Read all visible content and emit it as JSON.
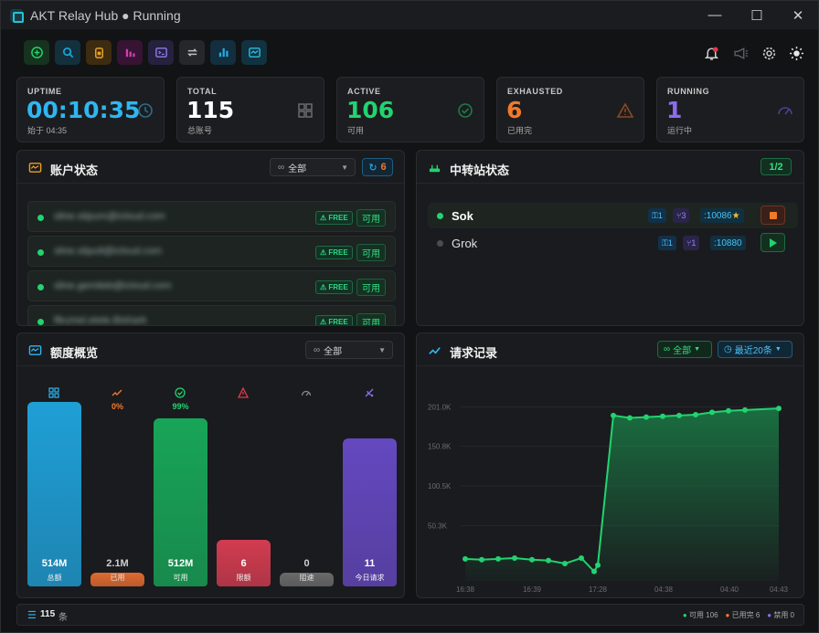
{
  "window": {
    "title": "AKT Relay Hub ● Running",
    "minimize": "—",
    "maximize": "☐",
    "close": "✕"
  },
  "toolbar": [
    {
      "name": "add",
      "icon": "plus-circle-icon",
      "color": "#23d36a"
    },
    {
      "name": "search",
      "icon": "search-icon",
      "color": "#1ea7d8"
    },
    {
      "name": "wallet",
      "icon": "jar-icon",
      "color": "#e6a128"
    },
    {
      "name": "stats",
      "icon": "bar-chart-icon",
      "color": "#d23fb5"
    },
    {
      "name": "terminal",
      "icon": "terminal-icon",
      "color": "#8f7be8"
    },
    {
      "name": "swap",
      "icon": "swap-icon",
      "color": "#bfbfbf"
    },
    {
      "name": "analytics",
      "icon": "bar-chart-icon",
      "color": "#27a9e0"
    },
    {
      "name": "monitor",
      "icon": "dashboard-icon",
      "color": "#2ac0e0"
    }
  ],
  "stats": {
    "uptime": {
      "label": "UPTIME",
      "value": "00:10:35",
      "sub": "始于 04:35",
      "color": "#2fb6f0"
    },
    "total": {
      "label": "TOTAL",
      "value": "115",
      "sub": "总账号",
      "color": "#ffffff"
    },
    "active": {
      "label": "ACTIVE",
      "value": "106",
      "sub": "可用",
      "color": "#22d36f"
    },
    "exhausted": {
      "label": "EXHAUSTED",
      "value": "6",
      "sub": "已用完",
      "color": "#f07a2a"
    },
    "running": {
      "label": "RUNNING",
      "value": "1",
      "sub": "运行中",
      "color": "#8b6cf0"
    }
  },
  "accounts": {
    "title": "账户状态",
    "filter": "全部",
    "refresh_count": "6",
    "rows": [
      {
        "name": "sline.stipum@icloud.com",
        "badge": "FREE",
        "status": "可用"
      },
      {
        "name": "sline.stipult@icloud.com",
        "badge": "FREE",
        "status": "可用"
      },
      {
        "name": "sline.gemiteb@icloud.com",
        "badge": "FREE",
        "status": "可用"
      },
      {
        "name": "flkumel.etele.Bishark",
        "badge": "FREE",
        "status": "可用"
      }
    ]
  },
  "relays": {
    "title": "中转站状态",
    "count": "1/2",
    "rows": [
      {
        "name": "Sok",
        "keys": "1",
        "forks": "3",
        "port": ":10086",
        "star": "★",
        "running": true
      },
      {
        "name": "Grok",
        "keys": "1",
        "forks": "1",
        "port": ":10880",
        "star": "",
        "running": false
      }
    ]
  },
  "quota": {
    "title": "额度概览",
    "filter": "全部",
    "bars": [
      {
        "value": "514M",
        "label": "总额",
        "pct": "",
        "height": 1.0,
        "color": "#1f9fd6",
        "icon": "grid-icon"
      },
      {
        "value": "2.1M",
        "label": "已用",
        "pct": "0%",
        "height": 0.07,
        "color": "#e06a30",
        "icon": "trend-icon"
      },
      {
        "value": "512M",
        "label": "可用",
        "pct": "99%",
        "height": 0.91,
        "color": "#18a558",
        "icon": "check-circle-icon"
      },
      {
        "value": "6",
        "label": "限额",
        "pct": "",
        "height": 0.25,
        "color": "#d23c50",
        "icon": "warning-icon"
      },
      {
        "value": "0",
        "label": "阻速",
        "pct": "",
        "height": 0.07,
        "color": "#6a6a6a",
        "icon": "gauge-icon"
      },
      {
        "value": "11",
        "label": "今日请求",
        "pct": "",
        "height": 0.8,
        "color": "#6448c0",
        "icon": "satellite-icon"
      }
    ]
  },
  "requests": {
    "title": "请求记录",
    "filter": "全部",
    "range": "最近20条"
  },
  "chart_data": {
    "type": "area",
    "x": [
      "16:38",
      "16:38",
      "16:38",
      "16:38",
      "16:39",
      "16:39",
      "16:39",
      "16:39",
      "17:28",
      "17:28",
      "17:28",
      "04:38",
      "04:38",
      "04:38",
      "04:38",
      "04:40",
      "04:40",
      "04:40",
      "04:43",
      "04:43"
    ],
    "values": [
      8000,
      7000,
      8000,
      9000,
      7000,
      6000,
      2000,
      9000,
      -8000,
      0,
      190000,
      187000,
      188000,
      189000,
      190000,
      191000,
      194000,
      196000,
      197000,
      199000
    ],
    "x_ticks": [
      "16:38",
      "16:39",
      "17:28",
      "04:38",
      "04:40",
      "04:43"
    ],
    "y_ticks": [
      "201.0K",
      "150.8K",
      "100.5K",
      "50.3K"
    ],
    "y_tick_values": [
      201000,
      150800,
      100500,
      50300
    ],
    "ylim": [
      -20000,
      220000
    ],
    "color": "#22d36f"
  },
  "footer": {
    "count": "115",
    "unit": "条",
    "legend": [
      {
        "label": "可用 106",
        "color": "#22d36f"
      },
      {
        "label": "已用完 6",
        "color": "#f07a2a"
      },
      {
        "label": "禁用 0",
        "color": "#8b6cf0"
      }
    ]
  }
}
